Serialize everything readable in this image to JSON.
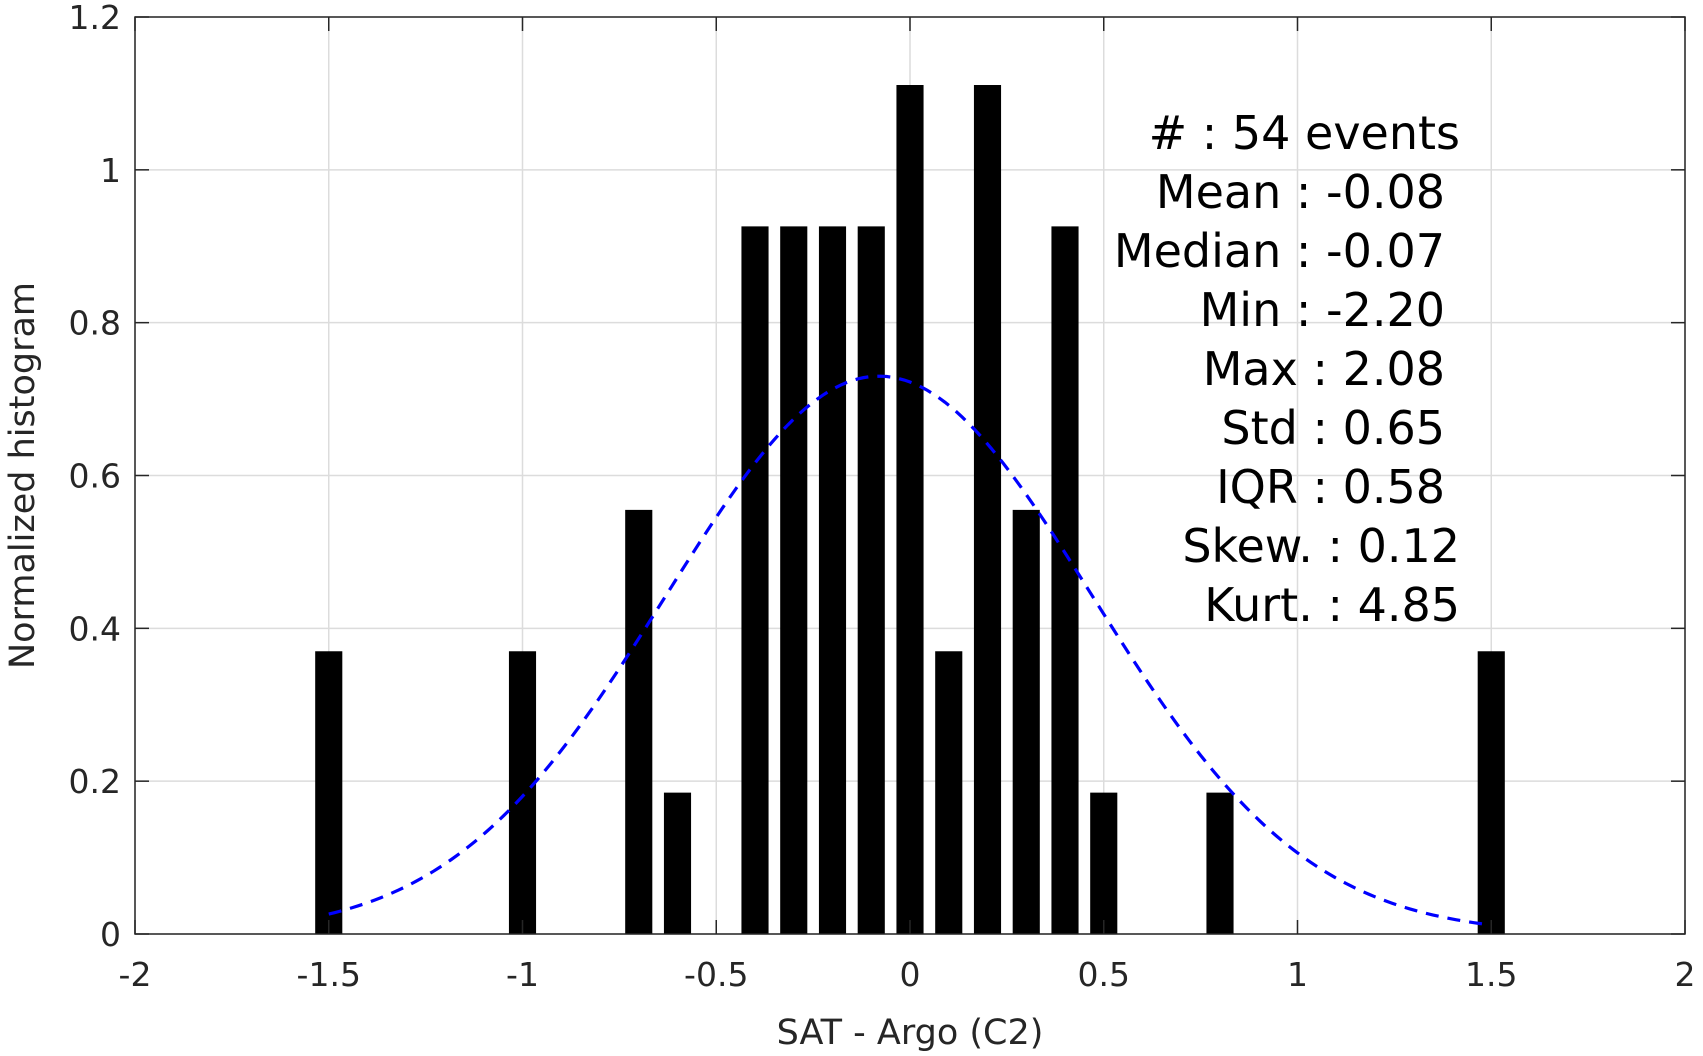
{
  "chart_data": {
    "type": "bar",
    "xlabel": "SAT - Argo (C2)",
    "ylabel": "Normalized histogram",
    "xlim": [
      -2,
      2
    ],
    "ylim": [
      0,
      1.2
    ],
    "grid": true,
    "xticks": [
      -2,
      -1.5,
      -1,
      -0.5,
      0,
      0.5,
      1,
      1.5,
      2
    ],
    "xtick_labels": [
      "-2",
      "-1.5",
      "-1",
      "-0.5",
      "0",
      "0.5",
      "1",
      "1.5",
      "2"
    ],
    "yticks": [
      0,
      0.2,
      0.4,
      0.6,
      0.8,
      1,
      1.2
    ],
    "ytick_labels": [
      "0",
      "0.2",
      "0.4",
      "0.6",
      "0.8",
      "1",
      "1.2"
    ],
    "bar_width": 0.07,
    "bars": {
      "x": [
        -1.5,
        -1.0,
        -0.7,
        -0.6,
        -0.4,
        -0.3,
        -0.2,
        -0.1,
        0.0,
        0.1,
        0.2,
        0.3,
        0.4,
        0.5,
        0.8,
        1.5
      ],
      "values": [
        0.37,
        0.37,
        0.555,
        0.185,
        0.926,
        0.926,
        0.926,
        0.926,
        1.111,
        0.37,
        1.111,
        0.555,
        0.926,
        0.185,
        0.185,
        0.37
      ],
      "color": "#000000"
    },
    "fit_curve": {
      "style": "dashed",
      "color": "#0000ff",
      "x_range": [
        -1.5,
        1.5
      ],
      "mean": -0.08,
      "std": 0.55,
      "peak": 0.73
    },
    "annotation": {
      "lines": [
        "#  : 54 events",
        "Mean : -0.08",
        "Median : -0.07",
        "Min : -2.20",
        "Max : 2.08",
        "Std : 0.65",
        "IQR : 0.58",
        "Skew. : 0.12",
        "Kurt. : 4.85"
      ]
    }
  }
}
